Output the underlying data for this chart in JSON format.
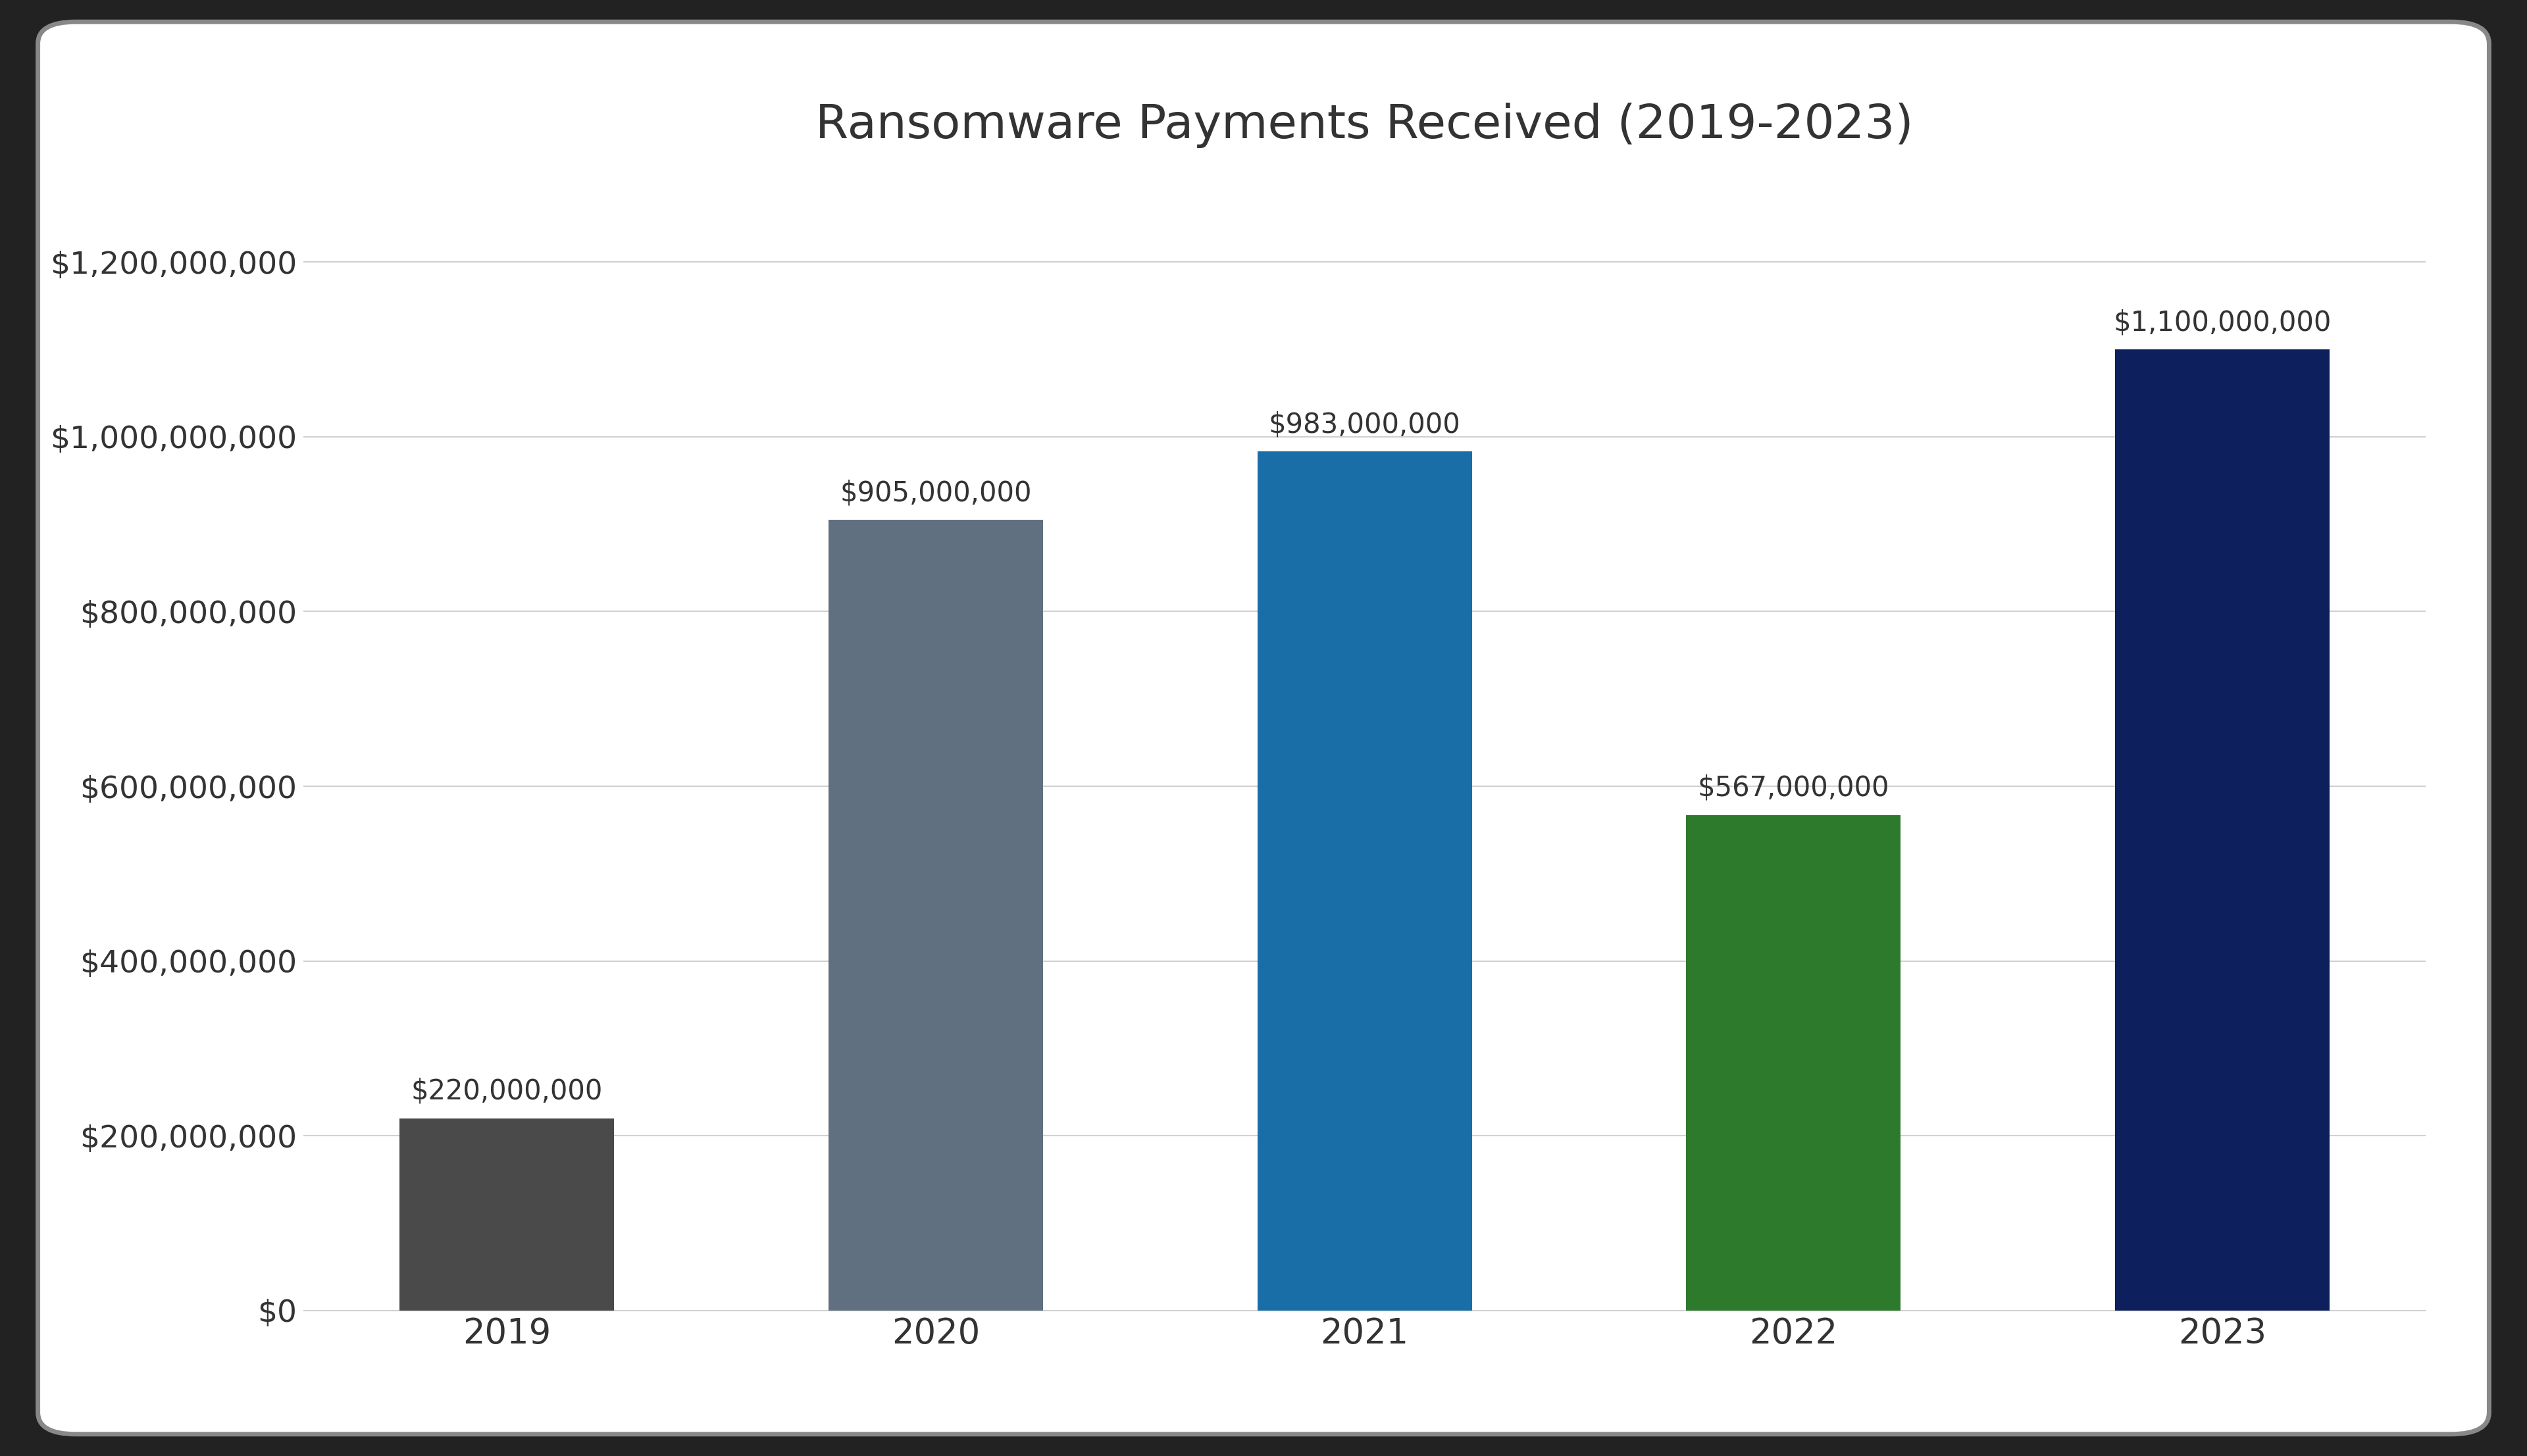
{
  "title": "Ransomware Payments Received (2019-2023)",
  "categories": [
    "2019",
    "2020",
    "2021",
    "2022",
    "2023"
  ],
  "values": [
    220000000,
    905000000,
    983000000,
    567000000,
    1100000000
  ],
  "bar_colors": [
    "#4a4a4a",
    "#607080",
    "#1a6ea8",
    "#2d7a2d",
    "#0d1f5c"
  ],
  "label_values": [
    "$220,000,000",
    "$905,000,000",
    "$983,000,000",
    "$567,000,000",
    "$1,100,000,000"
  ],
  "ylim": [
    0,
    1300000000
  ],
  "yticks": [
    0,
    200000000,
    400000000,
    600000000,
    800000000,
    1000000000,
    1200000000
  ],
  "ytick_labels": [
    "$0",
    "$200,000,000",
    "$400,000,000",
    "$600,000,000",
    "$800,000,000",
    "$1,000,000,000",
    "$1,200,000,000"
  ],
  "background_color": "#ffffff",
  "title_fontsize": 52,
  "tick_fontsize": 34,
  "label_fontsize": 30,
  "bar_width": 0.5,
  "grid_color": "#d0d0d0",
  "outer_bg": "#222222",
  "border_color": "#888888",
  "text_color": "#333333"
}
